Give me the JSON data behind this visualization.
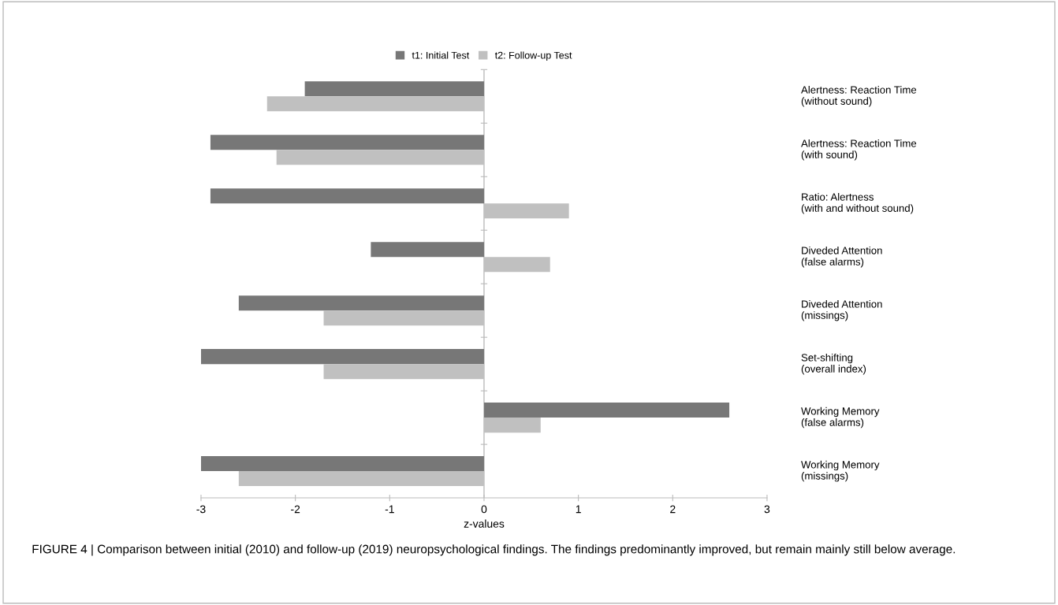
{
  "chart_data": {
    "type": "bar",
    "orientation": "horizontal",
    "xlabel": "z-values",
    "categories": [
      "Alertness: Reaction Time\n(without sound)",
      "Alertness: Reaction Time\n(with sound)",
      "Ratio: Alertness\n(with and without sound)",
      "Diveded Attention\n(false alarms)",
      "Diveded Attention\n(missings)",
      "Set-shifting\n(overall index)",
      "Working Memory\n(false alarms)",
      "Working Memory\n(missings)"
    ],
    "series": [
      {
        "name": "t1: Initial Test",
        "color": "#777777",
        "values": [
          -1.9,
          -2.9,
          -2.9,
          -1.2,
          -2.6,
          -3.0,
          2.6,
          -3.0
        ]
      },
      {
        "name": "t2: Follow-up Test",
        "color": "#c0c0c0",
        "values": [
          -2.3,
          -2.2,
          0.9,
          0.7,
          -1.7,
          -1.7,
          0.6,
          -2.6
        ]
      }
    ],
    "xlim": [
      -3,
      3
    ],
    "xticks": [
      -3,
      -2,
      -1,
      0,
      1,
      2,
      3
    ],
    "grid": false,
    "ref_lines": [
      {
        "axis": "x",
        "value": 0,
        "color": "#bbbbbb"
      }
    ],
    "legend": "top",
    "annotations": [
      "FIGURE 4 | Comparison between initial (2010) and follow-up (2019) neuropsychological findings. The findings predominantly improved, but remain mainly still below average."
    ]
  }
}
